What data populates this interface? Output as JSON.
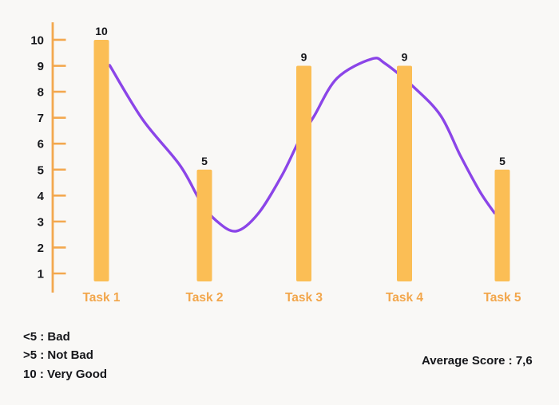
{
  "chart_data": {
    "type": "bar",
    "categories": [
      "Task 1",
      "Task 2",
      "Task 3",
      "Task 4",
      "Task 5"
    ],
    "values": [
      10,
      5,
      9,
      9,
      5
    ],
    "bar_value_labels": [
      "10",
      "5",
      "9",
      "9",
      "5"
    ],
    "yticks": [
      1,
      2,
      3,
      4,
      5,
      6,
      7,
      8,
      9,
      10
    ],
    "ylim": [
      0,
      10
    ],
    "grid": false,
    "legend_position": "bottom-left",
    "annotations": {
      "scale_notes": [
        "<5 : Bad",
        ">5 : Not Bad",
        "10 : Very Good"
      ],
      "average_score": "Average Score : 7,6"
    },
    "line_overlay": {
      "type": "line",
      "style": "smooth",
      "x_units": "task index (1 = Task 1 center)",
      "y_units": "score",
      "points": [
        {
          "x": 1.08,
          "y": 9.02
        },
        {
          "x": 1.4,
          "y": 6.93
        },
        {
          "x": 1.76,
          "y": 5.18
        },
        {
          "x": 1.96,
          "y": 3.79
        },
        {
          "x": 2.12,
          "y": 3.03
        },
        {
          "x": 2.32,
          "y": 2.63
        },
        {
          "x": 2.54,
          "y": 3.3
        },
        {
          "x": 2.78,
          "y": 4.78
        },
        {
          "x": 2.95,
          "y": 6.1
        },
        {
          "x": 3.1,
          "y": 7.05
        },
        {
          "x": 3.33,
          "y": 8.52
        },
        {
          "x": 3.67,
          "y": 9.26
        },
        {
          "x": 3.81,
          "y": 9.08
        },
        {
          "x": 4.1,
          "y": 8.16
        },
        {
          "x": 4.37,
          "y": 7.08
        },
        {
          "x": 4.57,
          "y": 5.55
        },
        {
          "x": 4.77,
          "y": 4.16
        },
        {
          "x": 4.92,
          "y": 3.33
        }
      ]
    },
    "colors": {
      "bar": "#FBBE55",
      "axis": "#F3A84F",
      "line": "#8B45E8",
      "category_label": "#F2A64B",
      "text": "#17181C",
      "background": "#F9F8F6"
    }
  }
}
